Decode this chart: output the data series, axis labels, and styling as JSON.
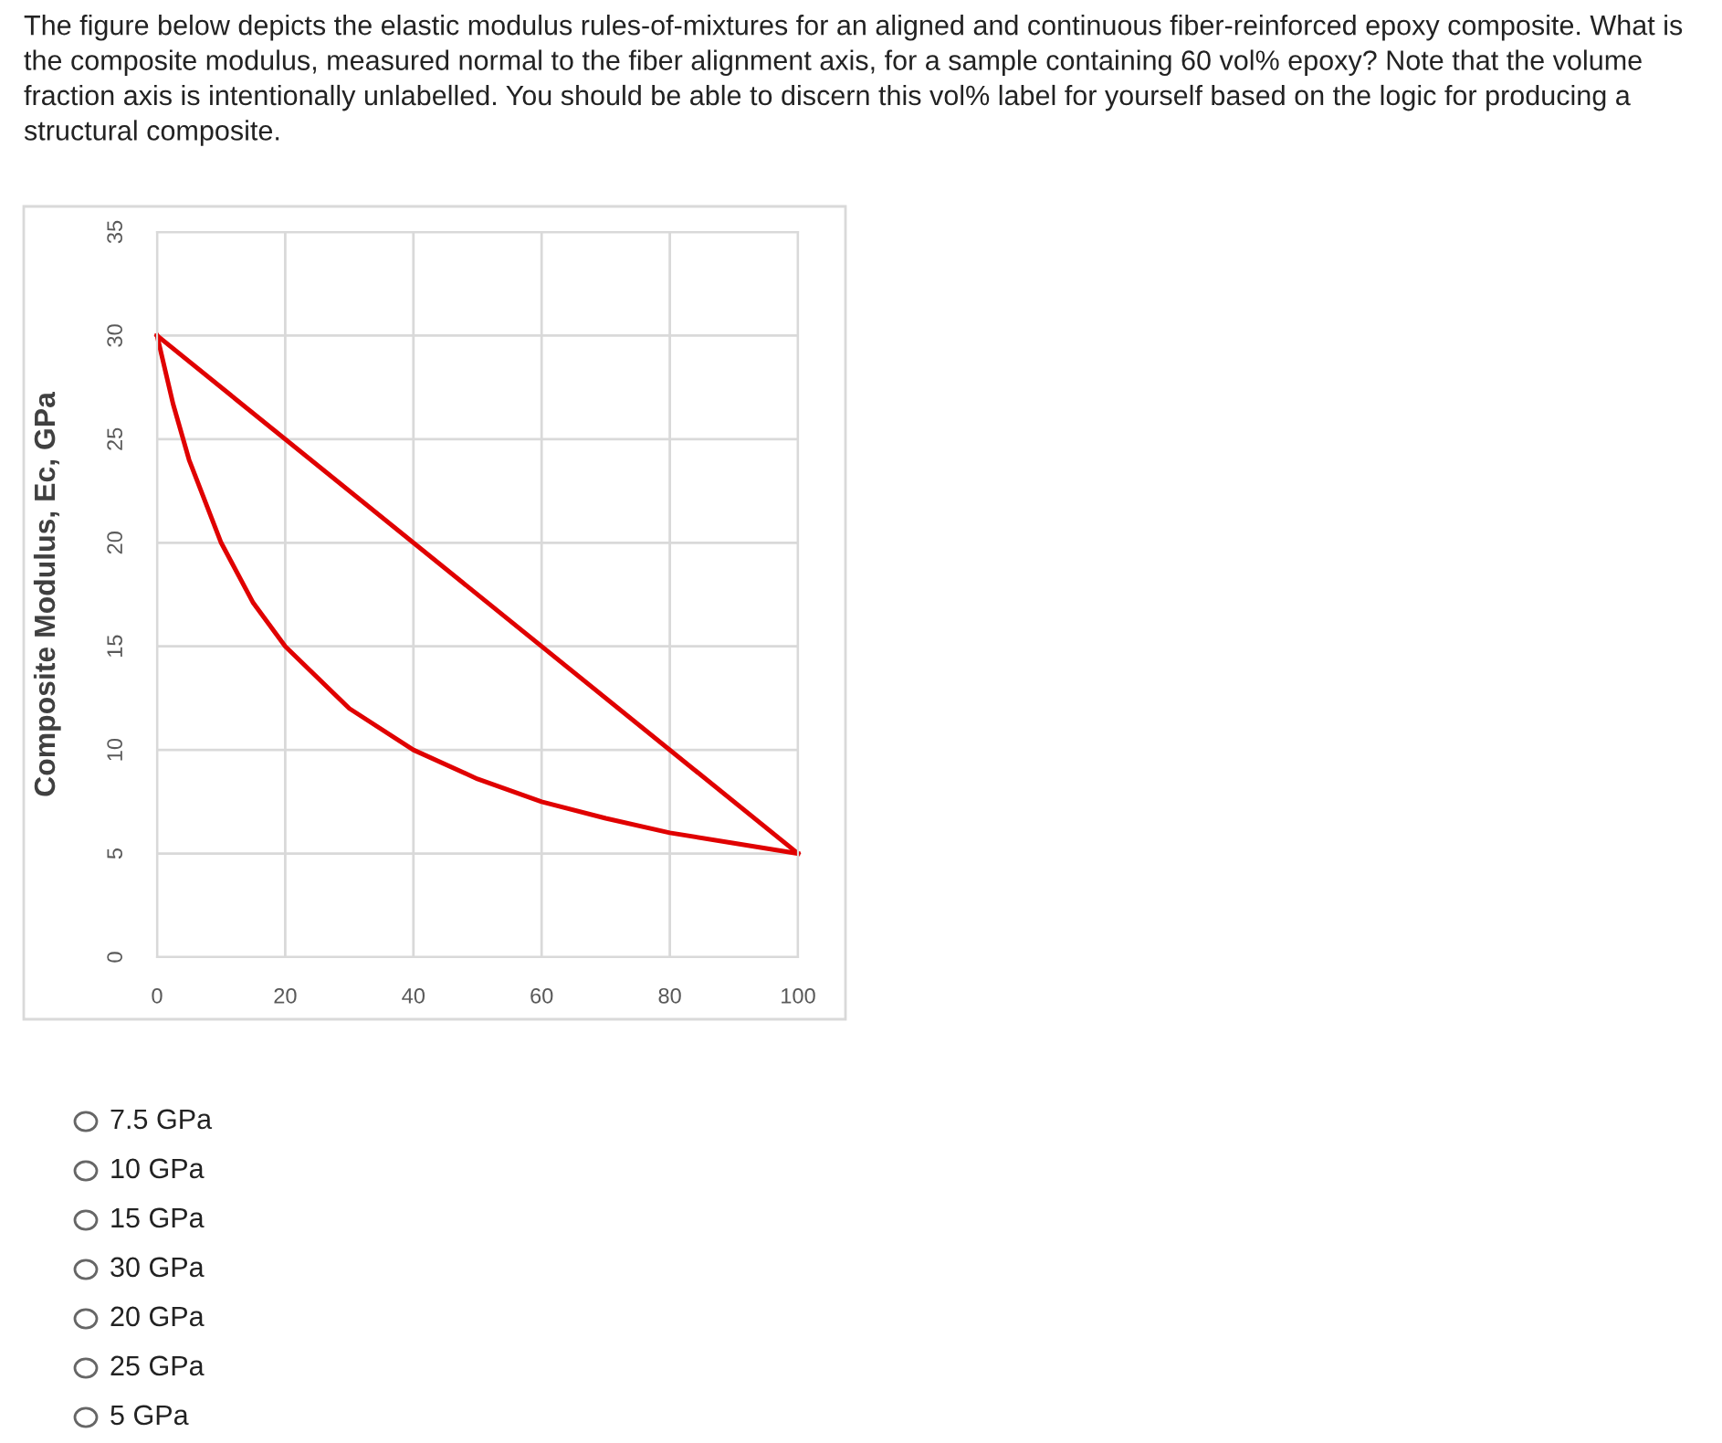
{
  "chart_data": {
    "type": "line",
    "title": "The figure below depicts the elastic modulus rules-of-mixtures for an aligned and continuous fiber-reinforced epoxy composite. What is the composite modulus, measured normal to the fiber alignment axis, for a sample containing 60 vol% epoxy? Note that the volume fraction axis is intentionally unlabelled. You should be able to discern this vol% label for yourself based on the logic for producing a structural composite.",
    "ylabel": "Composite Modulus, Ec, GPa",
    "series": [
      {
        "color": "#e00000",
        "x": [
          0,
          100
        ],
        "values": [
          30,
          5
        ]
      },
      {
        "color": "#e00000",
        "x": [
          0,
          2.5,
          5,
          10,
          15,
          20,
          30,
          40,
          50,
          60,
          70,
          80,
          90,
          100
        ],
        "values": [
          30,
          26.7,
          24,
          20,
          17.1,
          15,
          12,
          10,
          8.6,
          7.5,
          6.7,
          6,
          5.5,
          5
        ]
      }
    ],
    "xlim": [
      0,
      100
    ],
    "xticks": [
      0,
      20,
      40,
      60,
      80,
      100
    ],
    "ylim": [
      0,
      35
    ],
    "yticks": [
      0,
      5,
      10,
      15,
      20,
      25,
      30,
      35
    ],
    "grid": true,
    "marker": "none",
    "line_style": "solid",
    "annotations": [
      "7.5 GPa",
      "10 GPa",
      "15 GPa",
      "30 GPa",
      "20 GPa",
      "25 GPa",
      "5 GPa"
    ]
  }
}
